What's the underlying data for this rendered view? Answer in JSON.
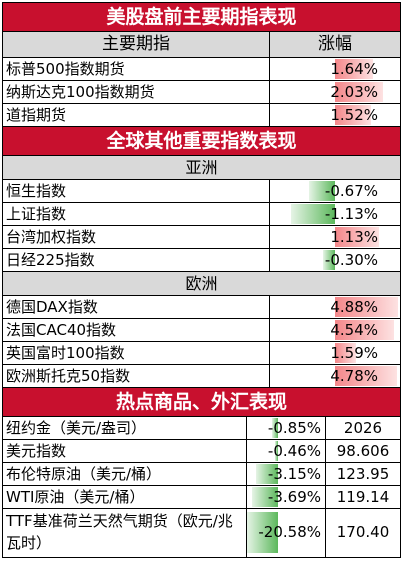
{
  "sections": {
    "us_title": "美股盘前主要期指表现",
    "global_title": "全球其他重要指数表现",
    "commodity_title": "热点商品、外汇表现"
  },
  "columns": {
    "name": "主要期指",
    "change": "涨幅"
  },
  "us_futures": [
    {
      "name": "标普500指数期货",
      "change": "1.64%",
      "pct": 1.64
    },
    {
      "name": "纳斯达克100指数期货",
      "change": "2.03%",
      "pct": 2.03
    },
    {
      "name": "道指期货",
      "change": "1.52%",
      "pct": 1.52
    }
  ],
  "asia": {
    "label": "亚洲",
    "rows": [
      {
        "name": "恒生指数",
        "change": "-0.67%",
        "pct": -0.67
      },
      {
        "name": "上证指数",
        "change": "-1.13%",
        "pct": -1.13
      },
      {
        "name": "台湾加权指数",
        "change": "1.13%",
        "pct": 1.13
      },
      {
        "name": "日经225指数",
        "change": "-0.30%",
        "pct": -0.3
      }
    ]
  },
  "europe": {
    "label": "欧洲",
    "rows": [
      {
        "name": "德国DAX指数",
        "change": "4.88%",
        "pct": 4.88
      },
      {
        "name": "法国CAC40指数",
        "change": "4.54%",
        "pct": 4.54
      },
      {
        "name": "英国富时100指数",
        "change": "1.59%",
        "pct": 1.59
      },
      {
        "name": "欧洲斯托克50指数",
        "change": "4.78%",
        "pct": 4.78
      }
    ]
  },
  "commodities": [
    {
      "name": "纽约金（美元/盎司）",
      "change": "-0.85%",
      "pct": -0.85,
      "price": "2026"
    },
    {
      "name": "美元指数",
      "change": "-0.46%",
      "pct": -0.46,
      "price": "98.606"
    },
    {
      "name": "布伦特原油（美元/桶）",
      "change": "-3.15%",
      "pct": -3.15,
      "price": "123.95"
    },
    {
      "name": "WTI原油（美元/桶）",
      "change": "-3.69%",
      "pct": -3.69,
      "price": "119.14"
    },
    {
      "name": "TTF基准荷兰天然气期货（欧元/兆瓦时）",
      "change": "-20.58%",
      "pct": -20.58,
      "price": "170.40"
    }
  ],
  "colors": {
    "banner": "#c8102e",
    "up": "#f4878a",
    "down": "#5cb85c",
    "header_bg": "#d9d9d9"
  }
}
